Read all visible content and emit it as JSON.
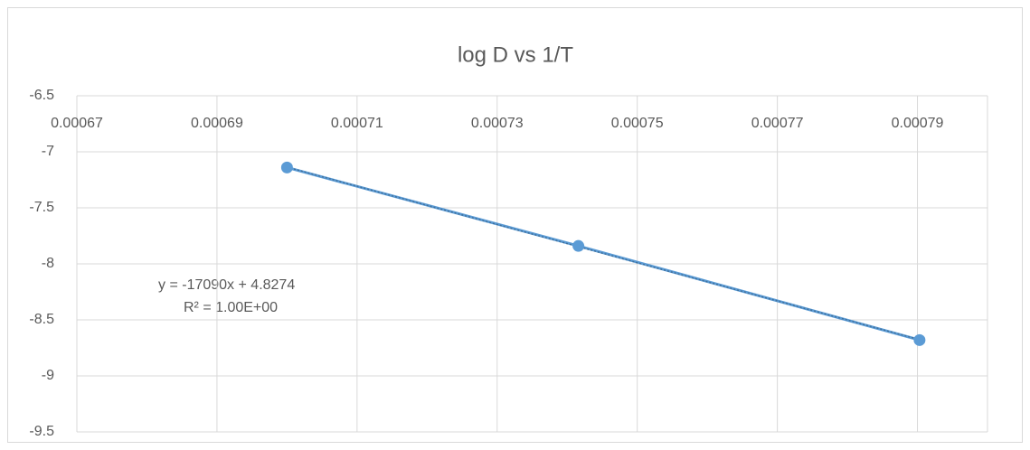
{
  "chart_data": {
    "type": "scatter",
    "title": "log D vs 1/T",
    "series": [
      {
        "name": "log D",
        "color": "#5b9bd5",
        "x": [
          0.0007,
          0.0007416,
          0.0007903
        ],
        "values": [
          -7.14,
          -7.84,
          -8.68
        ]
      }
    ],
    "annotations": [
      "y = -17090x + 4.8274",
      "R² = 1.00E+00"
    ],
    "xlim": [
      0.00067,
      0.0008
    ],
    "xticks": [
      0.00067,
      0.00069,
      0.00071,
      0.00073,
      0.00075,
      0.00077,
      0.00079
    ],
    "ylim": [
      -9.5,
      -6.5
    ],
    "yticks": [
      -6.5,
      -7,
      -7.5,
      -8,
      -8.5,
      -9,
      -9.5
    ],
    "grid": true,
    "trendline": "linear"
  }
}
